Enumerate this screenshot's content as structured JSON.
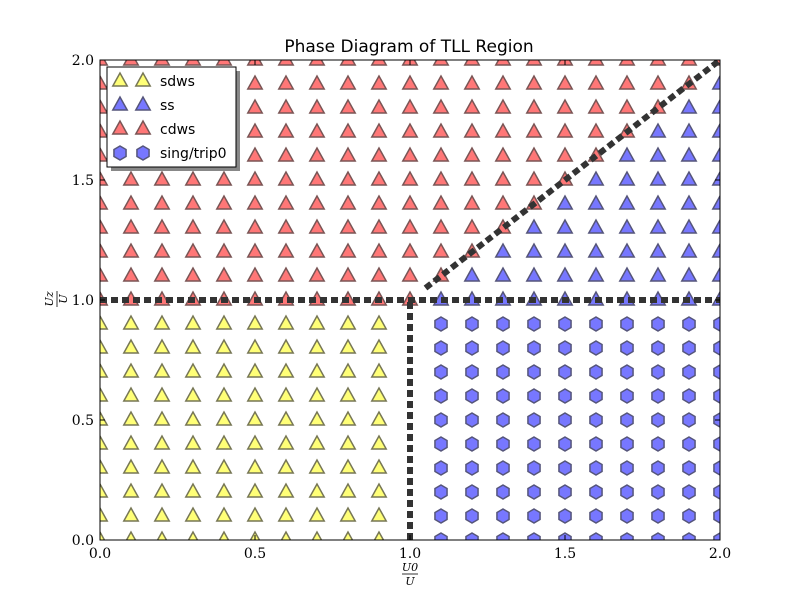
{
  "chart_data": {
    "type": "scatter",
    "title": "Phase Diagram of TLL Region",
    "xlabel_num": "U0",
    "xlabel_den": "U",
    "ylabel_num": "Uz",
    "ylabel_den": "U",
    "xlim": [
      0.0,
      2.0
    ],
    "ylim": [
      0.0,
      2.0
    ],
    "xticks": [
      0.0,
      0.5,
      1.0,
      1.5,
      2.0
    ],
    "yticks": [
      0.0,
      0.5,
      1.0,
      1.5,
      2.0
    ],
    "xtick_labels": [
      "0.0",
      "0.5",
      "1.0",
      "1.5",
      "2.0"
    ],
    "ytick_labels": [
      "0.0",
      "0.5",
      "1.0",
      "1.5",
      "2.0"
    ],
    "grid": false,
    "legend_position": "top-left",
    "series": [
      {
        "name": "sdws",
        "marker": "triangle",
        "color": "#ffff77",
        "edge": "#777755",
        "region": {
          "x": [
            0.0,
            0.9
          ],
          "y": [
            0.0,
            0.9
          ],
          "step": 0.1,
          "rule": "x < 1 and y < 1"
        }
      },
      {
        "name": "ss",
        "marker": "triangle",
        "color": "#7777ff",
        "edge": "#55557a",
        "region": {
          "x": [
            1.0,
            2.0
          ],
          "y": [
            1.0,
            2.0
          ],
          "step": 0.1,
          "rule": "x >= 1 and y >= 1 and y < x"
        }
      },
      {
        "name": "cdws",
        "marker": "triangle",
        "color": "#ff7777",
        "edge": "#7a5555",
        "region": {
          "x": [
            0.0,
            2.0
          ],
          "y": [
            1.0,
            2.0
          ],
          "step": 0.1,
          "rule": "y >= 1 and (x < 1 or y >= x)"
        }
      },
      {
        "name": "sing/trip0",
        "marker": "hexagon",
        "color": "#7777ff",
        "edge": "#55557a",
        "region": {
          "x": [
            1.1,
            2.0
          ],
          "y": [
            0.0,
            0.9
          ],
          "step": 0.1,
          "rule": "x > 1 and y < 1"
        }
      }
    ],
    "boundaries": [
      {
        "x": [
          0.0,
          2.0
        ],
        "y": [
          1.0,
          1.0
        ]
      },
      {
        "x": [
          1.0,
          1.0
        ],
        "y": [
          0.0,
          1.0
        ]
      },
      {
        "x": [
          1.05,
          2.0
        ],
        "y": [
          1.05,
          2.0
        ]
      }
    ],
    "colors": {
      "boundary": "#333333",
      "frame": "#000000"
    }
  }
}
